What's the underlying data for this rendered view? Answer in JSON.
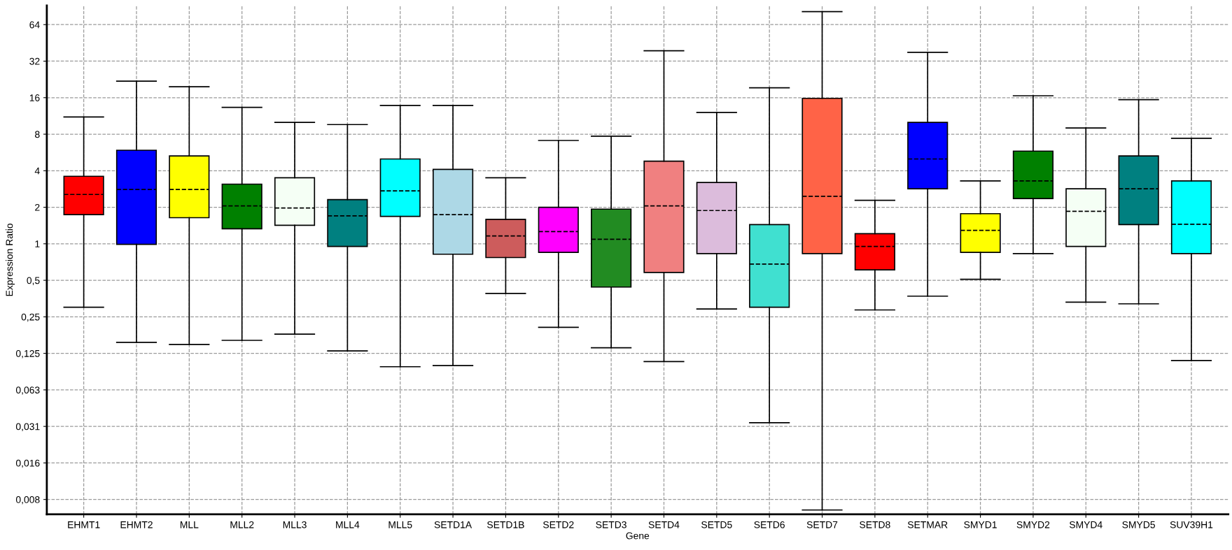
{
  "chart_data": {
    "type": "box",
    "xlabel": "Gene",
    "ylabel": "Expression Ratio",
    "log": true,
    "grid": true,
    "line_style": "dashed",
    "categories": [
      "EHMT1",
      "EHMT2",
      "MLL",
      "MLL2",
      "MLL3",
      "MLL4",
      "MLL5",
      "SETD1A",
      "SETD1B",
      "SETD2",
      "SETD3",
      "SETD4",
      "SETD5",
      "SETD6",
      "SETD7",
      "SETD8",
      "SETMAR",
      "SMYD1",
      "SMYD2",
      "SMYD4",
      "SMYD5",
      "SUV39H1"
    ],
    "colors": [
      "#ff0000",
      "#0000ff",
      "#ffff00",
      "#008000",
      "#f5fff5",
      "#008080",
      "#00ffff",
      "#add8e6",
      "#cd5c5c",
      "#ff00ff",
      "#228b22",
      "#f08080",
      "#dcbcdc",
      "#40e0d0",
      "#ff6347",
      "#ff0000",
      "#0000ff",
      "#ffff00",
      "#008000",
      "#f5fff5",
      "#008080",
      "#00ffff"
    ],
    "boxes": [
      {
        "low": 0.3,
        "q1": 1.74,
        "median": 2.55,
        "q3": 3.6,
        "high": 11.1
      },
      {
        "low": 0.154,
        "q1": 0.99,
        "median": 2.8,
        "q3": 5.9,
        "high": 21.9
      },
      {
        "low": 0.148,
        "q1": 1.64,
        "median": 2.8,
        "q3": 5.3,
        "high": 19.7
      },
      {
        "low": 0.16,
        "q1": 1.33,
        "median": 2.05,
        "q3": 3.1,
        "high": 13.3
      },
      {
        "low": 0.18,
        "q1": 1.42,
        "median": 1.97,
        "q3": 3.5,
        "high": 10.0
      },
      {
        "low": 0.131,
        "q1": 0.95,
        "median": 1.7,
        "q3": 2.31,
        "high": 9.6
      },
      {
        "low": 0.097,
        "q1": 1.68,
        "median": 2.73,
        "q3": 5.0,
        "high": 13.8
      },
      {
        "low": 0.099,
        "q1": 0.82,
        "median": 1.74,
        "q3": 4.1,
        "high": 13.8
      },
      {
        "low": 0.39,
        "q1": 0.77,
        "median": 1.16,
        "q3": 1.59,
        "high": 3.5
      },
      {
        "low": 0.205,
        "q1": 0.85,
        "median": 1.26,
        "q3": 2.0,
        "high": 7.1
      },
      {
        "low": 0.139,
        "q1": 0.44,
        "median": 1.09,
        "q3": 1.93,
        "high": 7.7
      },
      {
        "low": 0.107,
        "q1": 0.58,
        "median": 2.05,
        "q3": 4.8,
        "high": 39
      },
      {
        "low": 0.29,
        "q1": 0.83,
        "median": 1.88,
        "q3": 3.2,
        "high": 12.1
      },
      {
        "low": 0.0335,
        "q1": 0.3,
        "median": 0.68,
        "q3": 1.44,
        "high": 19.3
      },
      {
        "low": 0.0064,
        "q1": 0.83,
        "median": 2.46,
        "q3": 15.8,
        "high": 82
      },
      {
        "low": 0.285,
        "q1": 0.61,
        "median": 0.95,
        "q3": 1.21,
        "high": 2.28
      },
      {
        "low": 0.37,
        "q1": 2.84,
        "median": 5.0,
        "q3": 10.0,
        "high": 37.8
      },
      {
        "low": 0.51,
        "q1": 0.85,
        "median": 1.29,
        "q3": 1.77,
        "high": 3.3
      },
      {
        "low": 0.83,
        "q1": 2.36,
        "median": 3.3,
        "q3": 5.8,
        "high": 16.6
      },
      {
        "low": 0.33,
        "q1": 0.95,
        "median": 1.85,
        "q3": 2.84,
        "high": 9.0
      },
      {
        "low": 0.32,
        "q1": 1.44,
        "median": 2.84,
        "q3": 5.3,
        "high": 15.4
      },
      {
        "low": 0.109,
        "q1": 0.83,
        "median": 1.45,
        "q3": 3.3,
        "high": 7.4
      }
    ],
    "ylim": [
      0.0059,
      92
    ],
    "yticks": [
      {
        "value": 0.0078125,
        "label": "0,008"
      },
      {
        "value": 0.015625,
        "label": "0,016"
      },
      {
        "value": 0.03125,
        "label": "0,031"
      },
      {
        "value": 0.0625,
        "label": "0,063"
      },
      {
        "value": 0.125,
        "label": "0,125"
      },
      {
        "value": 0.25,
        "label": "0,25"
      },
      {
        "value": 0.5,
        "label": "0,5"
      },
      1,
      2,
      4,
      8,
      16,
      32,
      64
    ]
  }
}
